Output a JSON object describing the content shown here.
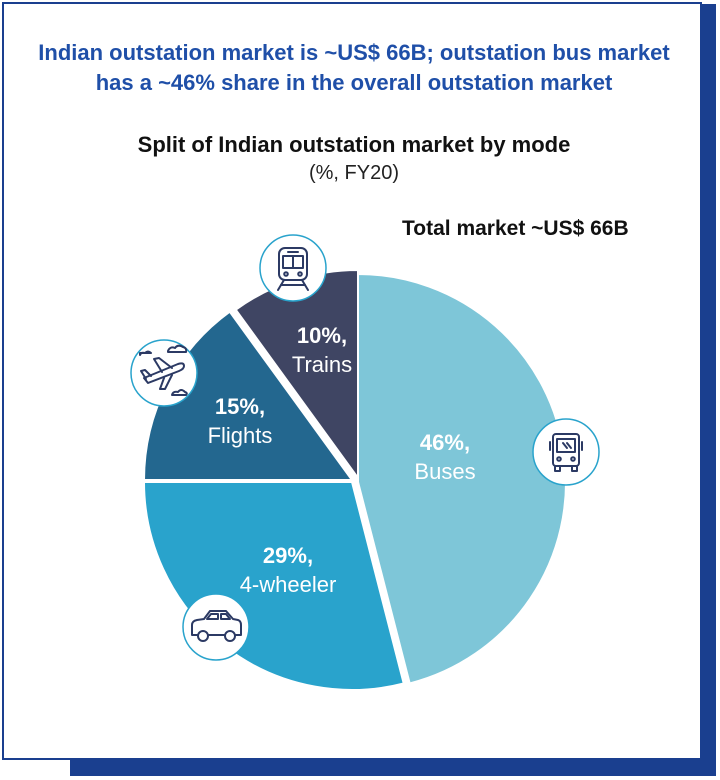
{
  "headline": "Indian outstation market is ~US$ 66B; outstation bus market has a ~46% share in the overall outstation market",
  "subtitle": "Split of Indian outstation market by mode",
  "units": "(%, FY20)",
  "total_label": "Total market ~US$ 66B",
  "chart_data": {
    "type": "pie",
    "title": "Split of Indian outstation market by mode",
    "subtitle": "(%, FY20)",
    "annotation": "Total market ~US$ 66B",
    "slices": [
      {
        "value": 46,
        "pct_label": "46%,",
        "name": "Buses",
        "color": "#7ec6d8",
        "icon": "bus-icon"
      },
      {
        "value": 29,
        "pct_label": "29%,",
        "name": "4-wheeler",
        "color": "#29a3cc",
        "icon": "car-icon"
      },
      {
        "value": 15,
        "pct_label": "15%,",
        "name": "Flights",
        "color": "#23678f",
        "icon": "airplane-icon"
      },
      {
        "value": 10,
        "pct_label": "10%,",
        "name": "Trains",
        "color": "#3f4563",
        "icon": "train-icon"
      }
    ]
  },
  "colors": {
    "border": "#1a3f8f",
    "headline": "#1f4fa8",
    "icon_stroke": "#2c3a64"
  }
}
